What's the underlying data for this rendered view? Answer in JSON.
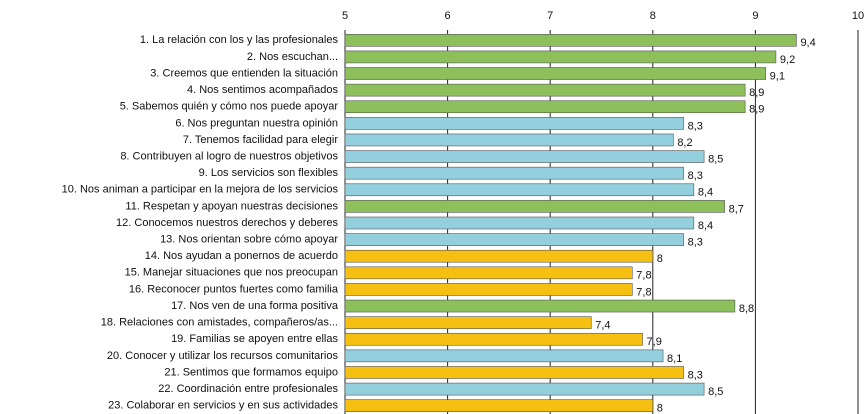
{
  "chart_data": {
    "type": "hbar",
    "categories": [
      "1. La relación con los y las profesionales",
      "2. Nos escuchan...",
      "3. Creemos que entienden la situación",
      "4. Nos sentimos acompañados",
      "5. Sabemos quién y cómo nos puede apoyar",
      "6. Nos preguntan nuestra opinión",
      "7. Tenemos facilidad para elegir",
      "8. Contribuyen al logro de nuestros objetivos",
      "9. Los servicios son flexibles",
      "10. Nos animan a participar en la mejora de los servicios",
      "11. Respetan y apoyan nuestras decisiones",
      "12. Conocemos nuestros derechos y deberes",
      "13. Nos orientan sobre cómo apoyar",
      "14. Nos ayudan a ponernos de acuerdo",
      "15. Manejar situaciones que nos preocupan",
      "16. Reconocer puntos fuertes como familia",
      "17. Nos ven de una forma positiva",
      "18. Relaciones con amistades, compañeros/as...",
      "19. Familias se apoyen entre ellas",
      "20. Conocer y utilizar los recursos comunitarios",
      "21. Sentimos que formamos equipo",
      "22. Coordinación entre profesionales",
      "23. Colaborar en servicios y en sus actividades"
    ],
    "values": [
      9.4,
      9.2,
      9.1,
      8.9,
      8.9,
      8.3,
      8.2,
      8.5,
      8.3,
      8.4,
      8.7,
      8.4,
      8.3,
      8,
      7.8,
      7.8,
      8.8,
      7.4,
      7.9,
      8.1,
      8.3,
      8.5,
      8
    ],
    "value_labels": [
      "9,4",
      "9,2",
      "9,1",
      "8,9",
      "8,9",
      "8,3",
      "8,2",
      "8,5",
      "8,3",
      "8,4",
      "8,7",
      "8,4",
      "8,3",
      "8",
      "7,8",
      "7,8",
      "8,8",
      "7,4",
      "7,9",
      "8,1",
      "8,3",
      "8,5",
      "8"
    ],
    "colors": [
      "#8dc05a",
      "#8dc05a",
      "#8dc05a",
      "#8dc05a",
      "#8dc05a",
      "#93cfdd",
      "#93cfdd",
      "#93cfdd",
      "#93cfdd",
      "#93cfdd",
      "#8dc05a",
      "#93cfdd",
      "#93cfdd",
      "#f6c012",
      "#f6c012",
      "#f6c012",
      "#8dc05a",
      "#f6c012",
      "#f6c012",
      "#93cfdd",
      "#f6c012",
      "#93cfdd",
      "#f6c012"
    ],
    "xlim": [
      5,
      10
    ],
    "xticks": [
      5,
      6,
      7,
      8,
      9,
      10
    ],
    "grid": true
  }
}
